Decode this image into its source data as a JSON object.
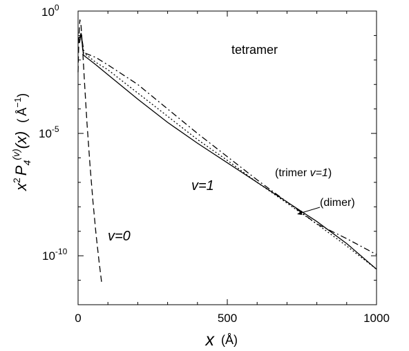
{
  "chart_data": {
    "type": "line",
    "xlabel": "x",
    "xunit": "(Å)",
    "ylabel_parts": {
      "base": "x",
      "exp": "2",
      "p": "P",
      "sub": "4",
      "sup": "(v)",
      "arg": "(x)",
      "unit_open": "(",
      "unit": "Å",
      "unit_exp": "−1",
      "unit_close": ")"
    },
    "xlim": [
      0,
      1000
    ],
    "ylim_log10": [
      -12,
      0
    ],
    "yscale": "log",
    "x_ticks": [
      {
        "value": 0,
        "label": "0"
      },
      {
        "value": 500,
        "label": "500"
      },
      {
        "value": 1000,
        "label": "1000"
      }
    ],
    "y_ticks": [
      {
        "exp": 0,
        "base": "10",
        "sup": "0"
      },
      {
        "exp": -5,
        "base": "10",
        "sup": "-5"
      },
      {
        "exp": -10,
        "base": "10",
        "sup": "-10"
      }
    ],
    "annotations": {
      "title": "tetramer",
      "v1": "v=1",
      "v0": "v=0",
      "trimer_open": "(trimer ",
      "trimer_v": "v=1",
      "trimer_close": ")",
      "dimer": "(dimer)"
    },
    "series": [
      {
        "key": "v1_tetramer",
        "style": "solid",
        "points": [
          [
            5,
            -1.3
          ],
          [
            10,
            -0.9
          ],
          [
            18,
            -1.8
          ],
          [
            60,
            -2.2
          ],
          [
            100,
            -2.6
          ],
          [
            200,
            -3.6
          ],
          [
            300,
            -4.55
          ],
          [
            400,
            -5.4
          ],
          [
            500,
            -6.2
          ],
          [
            600,
            -7.0
          ],
          [
            700,
            -7.8
          ],
          [
            800,
            -8.6
          ],
          [
            900,
            -9.5
          ],
          [
            1000,
            -10.55
          ]
        ]
      },
      {
        "key": "dimer",
        "style": "dotted",
        "points": [
          [
            5,
            -1.2
          ],
          [
            10,
            -0.95
          ],
          [
            18,
            -1.7
          ],
          [
            60,
            -2.1
          ],
          [
            100,
            -2.4
          ],
          [
            200,
            -3.35
          ],
          [
            300,
            -4.3
          ],
          [
            400,
            -5.25
          ],
          [
            500,
            -6.1
          ],
          [
            600,
            -7.0
          ],
          [
            700,
            -7.85
          ],
          [
            800,
            -8.7
          ],
          [
            900,
            -9.6
          ],
          [
            1000,
            -10.55
          ]
        ]
      },
      {
        "key": "trimer",
        "style": "dashdot",
        "points": [
          [
            5,
            -1.1
          ],
          [
            10,
            -0.9
          ],
          [
            20,
            -1.7
          ],
          [
            60,
            -1.9
          ],
          [
            100,
            -2.2
          ],
          [
            200,
            -3.0
          ],
          [
            300,
            -4.0
          ],
          [
            400,
            -5.0
          ],
          [
            500,
            -5.95
          ],
          [
            600,
            -6.9
          ],
          [
            700,
            -7.8
          ],
          [
            800,
            -8.7
          ],
          [
            900,
            -9.3
          ],
          [
            1000,
            -9.95
          ]
        ]
      },
      {
        "key": "v0",
        "style": "dashed",
        "points": [
          [
            0,
            -2.5
          ],
          [
            3,
            -1.0
          ],
          [
            6,
            -0.35
          ],
          [
            10,
            -0.6
          ],
          [
            15,
            -1.5
          ],
          [
            22,
            -3.0
          ],
          [
            30,
            -4.6
          ],
          [
            40,
            -6.3
          ],
          [
            50,
            -7.8
          ],
          [
            60,
            -9.1
          ],
          [
            70,
            -10.2
          ],
          [
            80,
            -11.2
          ]
        ]
      }
    ]
  }
}
